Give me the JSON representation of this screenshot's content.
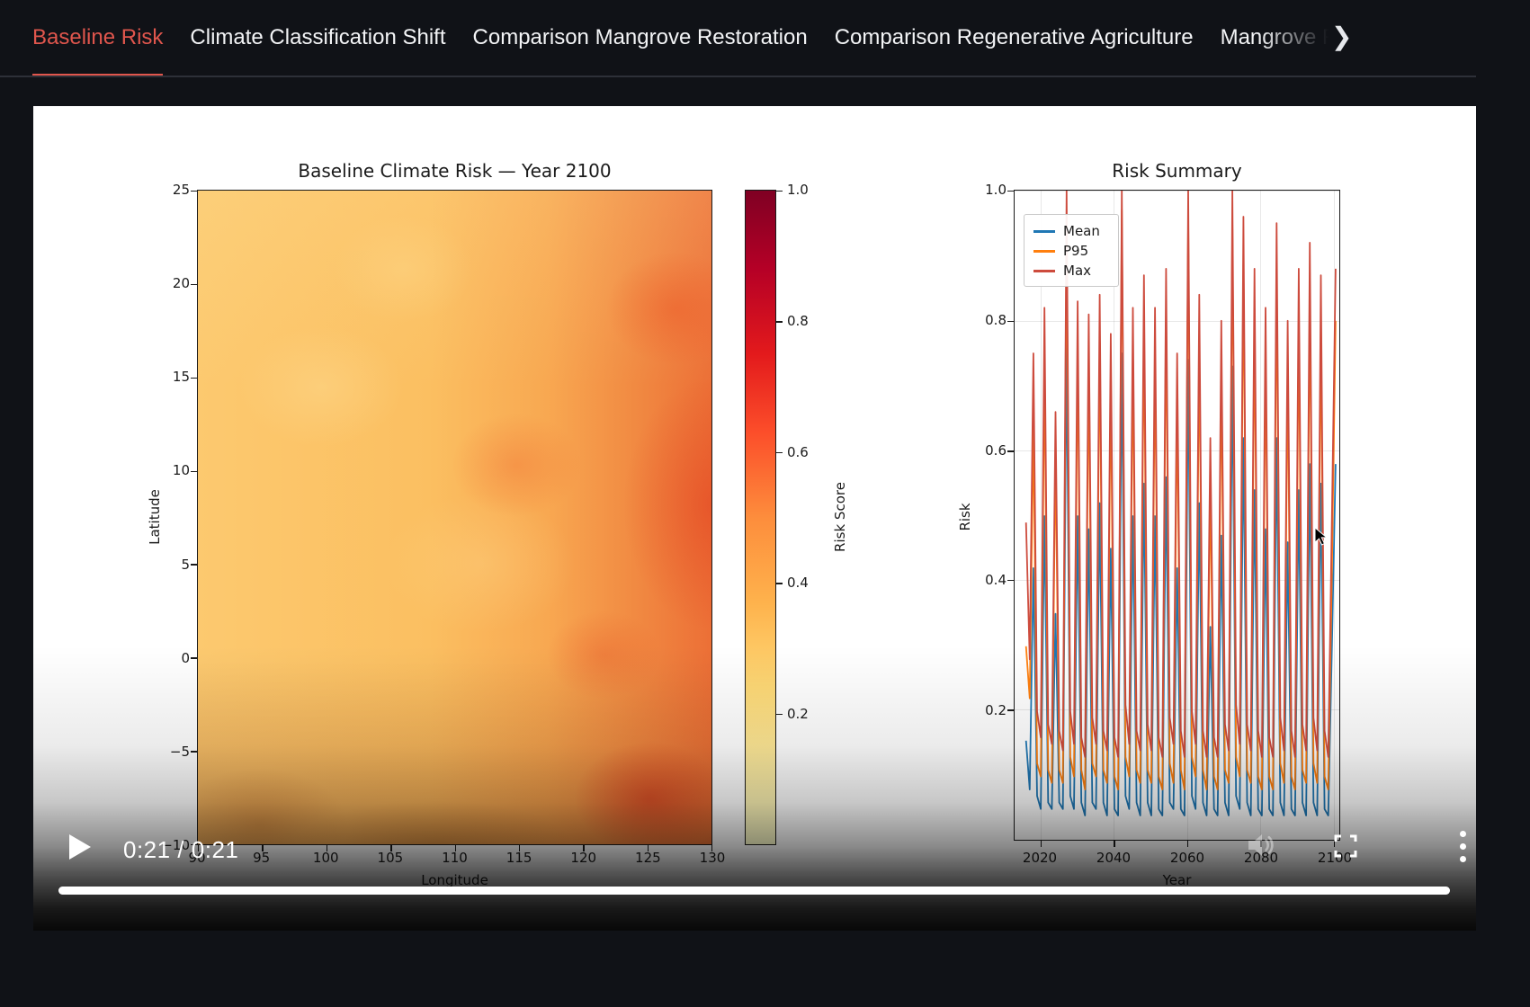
{
  "tabs": {
    "active_color": "#e0564d",
    "items": [
      {
        "label": "Baseline Risk",
        "active": true
      },
      {
        "label": "Climate Classification Shift",
        "active": false
      },
      {
        "label": "Comparison Mangrove Restoration",
        "active": false
      },
      {
        "label": "Comparison Regenerative Agriculture",
        "active": false
      },
      {
        "label": "Mangrove Re",
        "active": false,
        "truncated": true
      }
    ],
    "scroll_next_icon": "chevron-right",
    "scroll_next_glyph": "❯"
  },
  "video_player": {
    "time_display": "0:21 / 0:21",
    "current_time": "0:21",
    "duration": "0:21",
    "progress_percent": 100,
    "controls": [
      "play",
      "volume",
      "fullscreen",
      "more-options"
    ]
  },
  "chart_data": [
    {
      "type": "heatmap",
      "title": "Baseline Climate Risk — Year 2100",
      "xlabel": "Longitude",
      "ylabel": "Latitude",
      "x_tick_labels": [
        "90",
        "95",
        "100",
        "105",
        "110",
        "115",
        "120",
        "125",
        "130"
      ],
      "y_tick_labels": [
        "25",
        "20",
        "15",
        "10",
        "5",
        "0",
        "−5",
        "−10"
      ],
      "colormap": "YlOrRd",
      "vmin": 0,
      "vmax": 1,
      "colorbar_label": "Risk Score",
      "colorbar_tick_labels": [
        "1.0",
        "0.8",
        "0.6",
        "0.4",
        "0.2"
      ],
      "lon_cols": [
        92.5,
        97.5,
        102.5,
        107.5,
        112.5,
        117.5,
        122.5,
        127.5
      ],
      "lat_rows": [
        22.5,
        17.5,
        12.5,
        7.5,
        2.5,
        -2.5,
        -7.5
      ],
      "values_approx": [
        [
          0.38,
          0.36,
          0.4,
          0.42,
          0.4,
          0.45,
          0.52,
          0.6
        ],
        [
          0.4,
          0.38,
          0.42,
          0.4,
          0.44,
          0.48,
          0.55,
          0.62
        ],
        [
          0.42,
          0.4,
          0.44,
          0.46,
          0.45,
          0.5,
          0.58,
          0.66
        ],
        [
          0.44,
          0.46,
          0.45,
          0.48,
          0.5,
          0.55,
          0.62,
          0.7
        ],
        [
          0.46,
          0.48,
          0.5,
          0.52,
          0.55,
          0.6,
          0.66,
          0.74
        ],
        [
          0.5,
          0.52,
          0.54,
          0.56,
          0.58,
          0.64,
          0.7,
          0.78
        ],
        [
          0.55,
          0.56,
          0.58,
          0.6,
          0.62,
          0.68,
          0.74,
          0.82
        ]
      ]
    },
    {
      "type": "line",
      "title": "Risk Summary",
      "xlabel": "Year",
      "ylabel": "Risk",
      "x_tick_labels": [
        "2020",
        "2040",
        "2060",
        "2080",
        "2100"
      ],
      "y_tick_labels": [
        "1.0",
        "0.8",
        "0.6",
        "0.4",
        "0.2"
      ],
      "xlim": [
        2012.9,
        2101.5
      ],
      "ylim": [
        0,
        1
      ],
      "grid": true,
      "legend_position": "upper left",
      "x_start": 2016,
      "x_step": 1,
      "series": [
        {
          "name": "Mean",
          "color": "#1f77b4",
          "values": [
            0.155,
            0.08,
            0.42,
            0.07,
            0.05,
            0.5,
            0.06,
            0.05,
            0.35,
            0.06,
            0.05,
            0.77,
            0.07,
            0.05,
            0.5,
            0.06,
            0.04,
            0.48,
            0.06,
            0.05,
            0.52,
            0.06,
            0.04,
            0.45,
            0.05,
            0.04,
            0.75,
            0.07,
            0.05,
            0.5,
            0.06,
            0.04,
            0.55,
            0.06,
            0.04,
            0.5,
            0.05,
            0.04,
            0.56,
            0.06,
            0.05,
            0.42,
            0.05,
            0.04,
            0.74,
            0.07,
            0.05,
            0.52,
            0.06,
            0.04,
            0.33,
            0.05,
            0.04,
            0.47,
            0.06,
            0.04,
            0.73,
            0.07,
            0.05,
            0.62,
            0.06,
            0.04,
            0.54,
            0.05,
            0.04,
            0.48,
            0.05,
            0.04,
            0.62,
            0.06,
            0.04,
            0.46,
            0.05,
            0.04,
            0.54,
            0.06,
            0.04,
            0.58,
            0.06,
            0.04,
            0.55,
            0.05,
            0.04,
            0.3,
            0.58
          ]
        },
        {
          "name": "P95",
          "color": "#ff7f0e",
          "values": [
            0.3,
            0.22,
            0.64,
            0.12,
            0.1,
            0.74,
            0.11,
            0.09,
            0.6,
            0.11,
            0.09,
            0.95,
            0.13,
            0.1,
            0.76,
            0.11,
            0.08,
            0.74,
            0.12,
            0.1,
            0.78,
            0.11,
            0.09,
            0.71,
            0.1,
            0.08,
            0.97,
            0.13,
            0.1,
            0.75,
            0.11,
            0.09,
            0.8,
            0.11,
            0.09,
            0.75,
            0.1,
            0.08,
            0.82,
            0.12,
            0.09,
            0.68,
            0.11,
            0.08,
            0.96,
            0.13,
            0.1,
            0.77,
            0.11,
            0.08,
            0.55,
            0.1,
            0.08,
            0.73,
            0.11,
            0.09,
            0.95,
            0.13,
            0.1,
            0.9,
            0.11,
            0.09,
            0.81,
            0.1,
            0.08,
            0.75,
            0.1,
            0.08,
            0.88,
            0.12,
            0.09,
            0.73,
            0.1,
            0.08,
            0.81,
            0.11,
            0.09,
            0.85,
            0.12,
            0.09,
            0.8,
            0.1,
            0.08,
            0.42,
            0.8
          ]
        },
        {
          "name": "Max",
          "color": "#cd4b3d",
          "values": [
            0.49,
            0.28,
            0.75,
            0.2,
            0.16,
            0.82,
            0.18,
            0.15,
            0.66,
            0.17,
            0.14,
            1.0,
            0.2,
            0.15,
            0.83,
            0.16,
            0.13,
            0.81,
            0.19,
            0.15,
            0.84,
            0.17,
            0.14,
            0.78,
            0.16,
            0.13,
            1.0,
            0.21,
            0.15,
            0.82,
            0.17,
            0.14,
            0.87,
            0.18,
            0.14,
            0.82,
            0.16,
            0.13,
            0.88,
            0.19,
            0.15,
            0.75,
            0.17,
            0.13,
            1.0,
            0.2,
            0.15,
            0.84,
            0.17,
            0.13,
            0.62,
            0.16,
            0.13,
            0.8,
            0.18,
            0.14,
            1.0,
            0.21,
            0.15,
            0.96,
            0.18,
            0.14,
            0.88,
            0.17,
            0.13,
            0.82,
            0.16,
            0.13,
            0.95,
            0.19,
            0.14,
            0.8,
            0.17,
            0.13,
            0.88,
            0.18,
            0.14,
            0.92,
            0.19,
            0.14,
            0.87,
            0.17,
            0.13,
            0.5,
            0.88
          ]
        }
      ]
    }
  ]
}
